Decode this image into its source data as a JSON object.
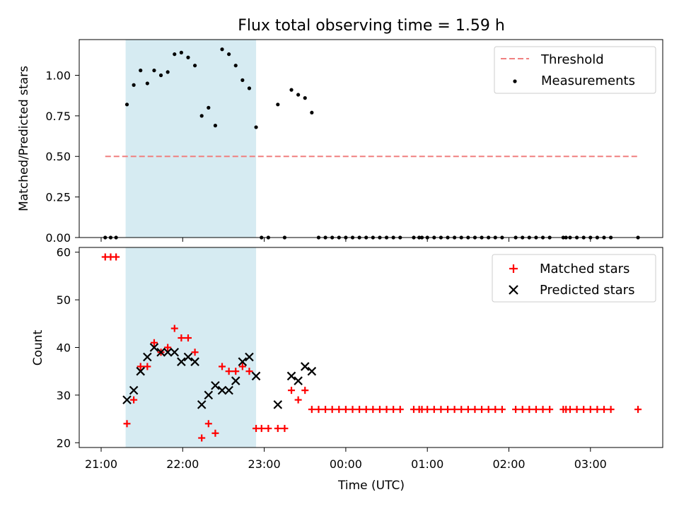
{
  "chart_data": [
    {
      "type": "scatter",
      "title": "Flux total observing time = 1.59 h",
      "ylabel": "Matched/Predicted stars",
      "xlabel": "",
      "ylim": [
        0,
        1.22
      ],
      "yticks": [
        "0.00",
        "0.25",
        "0.50",
        "0.75",
        "1.00"
      ],
      "ytick_values": [
        0,
        0.25,
        0.5,
        0.75,
        1.0
      ],
      "grid": false,
      "legend_position": "upper right",
      "shaded_interval": [
        "21:18",
        "22:54"
      ],
      "threshold": {
        "name": "Threshold",
        "y": 0.5,
        "x_start": "21:03",
        "x_end": "03:35",
        "color": "#f08080"
      },
      "series": [
        {
          "name": "Measurements",
          "color": "#000000",
          "marker": "dot",
          "points": [
            [
              "21:03",
              0.0
            ],
            [
              "21:07",
              0.0
            ],
            [
              "21:11",
              0.0
            ],
            [
              "21:19",
              0.82
            ],
            [
              "21:24",
              0.94
            ],
            [
              "21:29",
              1.03
            ],
            [
              "21:34",
              0.95
            ],
            [
              "21:39",
              1.03
            ],
            [
              "21:44",
              1.0
            ],
            [
              "21:49",
              1.02
            ],
            [
              "21:54",
              1.13
            ],
            [
              "21:59",
              1.14
            ],
            [
              "22:04",
              1.11
            ],
            [
              "22:09",
              1.06
            ],
            [
              "22:14",
              0.75
            ],
            [
              "22:19",
              0.8
            ],
            [
              "22:24",
              0.69
            ],
            [
              "22:29",
              1.16
            ],
            [
              "22:34",
              1.13
            ],
            [
              "22:39",
              1.06
            ],
            [
              "22:44",
              0.97
            ],
            [
              "22:49",
              0.92
            ],
            [
              "22:54",
              0.68
            ],
            [
              "22:58",
              0.0
            ],
            [
              "23:03",
              0.0
            ],
            [
              "23:10",
              0.82
            ],
            [
              "23:15",
              0.0
            ],
            [
              "23:20",
              0.91
            ],
            [
              "23:25",
              0.88
            ],
            [
              "23:30",
              0.86
            ],
            [
              "23:35",
              0.77
            ],
            [
              "23:40",
              0.0
            ],
            [
              "23:45",
              0.0
            ],
            [
              "23:50",
              0.0
            ],
            [
              "23:55",
              0.0
            ],
            [
              "00:00",
              0.0
            ],
            [
              "00:05",
              0.0
            ],
            [
              "00:10",
              0.0
            ],
            [
              "00:15",
              0.0
            ],
            [
              "00:20",
              0.0
            ],
            [
              "00:25",
              0.0
            ],
            [
              "00:30",
              0.0
            ],
            [
              "00:35",
              0.0
            ],
            [
              "00:40",
              0.0
            ],
            [
              "00:50",
              0.0
            ],
            [
              "00:54",
              0.0
            ],
            [
              "00:56",
              0.0
            ],
            [
              "01:00",
              0.0
            ],
            [
              "01:05",
              0.0
            ],
            [
              "01:10",
              0.0
            ],
            [
              "01:15",
              0.0
            ],
            [
              "01:20",
              0.0
            ],
            [
              "01:25",
              0.0
            ],
            [
              "01:30",
              0.0
            ],
            [
              "01:35",
              0.0
            ],
            [
              "01:40",
              0.0
            ],
            [
              "01:45",
              0.0
            ],
            [
              "01:50",
              0.0
            ],
            [
              "01:55",
              0.0
            ],
            [
              "02:05",
              0.0
            ],
            [
              "02:10",
              0.0
            ],
            [
              "02:15",
              0.0
            ],
            [
              "02:20",
              0.0
            ],
            [
              "02:25",
              0.0
            ],
            [
              "02:30",
              0.0
            ],
            [
              "02:40",
              0.0
            ],
            [
              "02:42",
              0.0
            ],
            [
              "02:45",
              0.0
            ],
            [
              "02:50",
              0.0
            ],
            [
              "02:55",
              0.0
            ],
            [
              "03:00",
              0.0
            ],
            [
              "03:05",
              0.0
            ],
            [
              "03:10",
              0.0
            ],
            [
              "03:15",
              0.0
            ],
            [
              "03:35",
              0.0
            ]
          ]
        }
      ]
    },
    {
      "type": "scatter",
      "title": "",
      "ylabel": "Count",
      "xlabel": "Time (UTC)",
      "ylim": [
        19,
        61
      ],
      "yticks": [
        "20",
        "30",
        "40",
        "50",
        "60"
      ],
      "ytick_values": [
        20,
        30,
        40,
        50,
        60
      ],
      "xticks": [
        "21:00",
        "22:00",
        "23:00",
        "00:00",
        "01:00",
        "02:00",
        "03:00"
      ],
      "grid": false,
      "legend_position": "upper right",
      "shaded_interval": [
        "21:18",
        "22:54"
      ],
      "series": [
        {
          "name": "Matched stars",
          "color": "#ff0000",
          "marker": "plus",
          "points": [
            [
              "21:03",
              59
            ],
            [
              "21:07",
              59
            ],
            [
              "21:11",
              59
            ],
            [
              "21:19",
              24
            ],
            [
              "21:24",
              29
            ],
            [
              "21:29",
              36
            ],
            [
              "21:34",
              36
            ],
            [
              "21:39",
              41
            ],
            [
              "21:44",
              39
            ],
            [
              "21:49",
              40
            ],
            [
              "21:54",
              44
            ],
            [
              "21:59",
              42
            ],
            [
              "22:04",
              42
            ],
            [
              "22:09",
              39
            ],
            [
              "22:14",
              21
            ],
            [
              "22:19",
              24
            ],
            [
              "22:24",
              22
            ],
            [
              "22:29",
              36
            ],
            [
              "22:34",
              35
            ],
            [
              "22:39",
              35
            ],
            [
              "22:44",
              36
            ],
            [
              "22:49",
              35
            ],
            [
              "22:54",
              23
            ],
            [
              "22:58",
              23
            ],
            [
              "23:03",
              23
            ],
            [
              "23:10",
              23
            ],
            [
              "23:15",
              23
            ],
            [
              "23:20",
              31
            ],
            [
              "23:25",
              29
            ],
            [
              "23:30",
              31
            ],
            [
              "23:35",
              27
            ],
            [
              "23:40",
              27
            ],
            [
              "23:45",
              27
            ],
            [
              "23:50",
              27
            ],
            [
              "23:55",
              27
            ],
            [
              "00:00",
              27
            ],
            [
              "00:05",
              27
            ],
            [
              "00:10",
              27
            ],
            [
              "00:15",
              27
            ],
            [
              "00:20",
              27
            ],
            [
              "00:25",
              27
            ],
            [
              "00:30",
              27
            ],
            [
              "00:35",
              27
            ],
            [
              "00:40",
              27
            ],
            [
              "00:50",
              27
            ],
            [
              "00:54",
              27
            ],
            [
              "00:56",
              27
            ],
            [
              "01:00",
              27
            ],
            [
              "01:05",
              27
            ],
            [
              "01:10",
              27
            ],
            [
              "01:15",
              27
            ],
            [
              "01:20",
              27
            ],
            [
              "01:25",
              27
            ],
            [
              "01:30",
              27
            ],
            [
              "01:35",
              27
            ],
            [
              "01:40",
              27
            ],
            [
              "01:45",
              27
            ],
            [
              "01:50",
              27
            ],
            [
              "01:55",
              27
            ],
            [
              "02:05",
              27
            ],
            [
              "02:10",
              27
            ],
            [
              "02:15",
              27
            ],
            [
              "02:20",
              27
            ],
            [
              "02:25",
              27
            ],
            [
              "02:30",
              27
            ],
            [
              "02:40",
              27
            ],
            [
              "02:42",
              27
            ],
            [
              "02:45",
              27
            ],
            [
              "02:50",
              27
            ],
            [
              "02:55",
              27
            ],
            [
              "03:00",
              27
            ],
            [
              "03:05",
              27
            ],
            [
              "03:10",
              27
            ],
            [
              "03:15",
              27
            ],
            [
              "03:35",
              27
            ]
          ]
        },
        {
          "name": "Predicted stars",
          "color": "#000000",
          "marker": "x",
          "points": [
            [
              "21:19",
              29
            ],
            [
              "21:24",
              31
            ],
            [
              "21:29",
              35
            ],
            [
              "21:34",
              38
            ],
            [
              "21:39",
              40
            ],
            [
              "21:44",
              39
            ],
            [
              "21:49",
              39
            ],
            [
              "21:54",
              39
            ],
            [
              "21:59",
              37
            ],
            [
              "22:04",
              38
            ],
            [
              "22:09",
              37
            ],
            [
              "22:14",
              28
            ],
            [
              "22:19",
              30
            ],
            [
              "22:24",
              32
            ],
            [
              "22:29",
              31
            ],
            [
              "22:34",
              31
            ],
            [
              "22:39",
              33
            ],
            [
              "22:44",
              37
            ],
            [
              "22:49",
              38
            ],
            [
              "22:54",
              34
            ],
            [
              "23:10",
              28
            ],
            [
              "23:20",
              34
            ],
            [
              "23:25",
              33
            ],
            [
              "23:30",
              36
            ],
            [
              "23:35",
              35
            ]
          ]
        }
      ]
    }
  ]
}
